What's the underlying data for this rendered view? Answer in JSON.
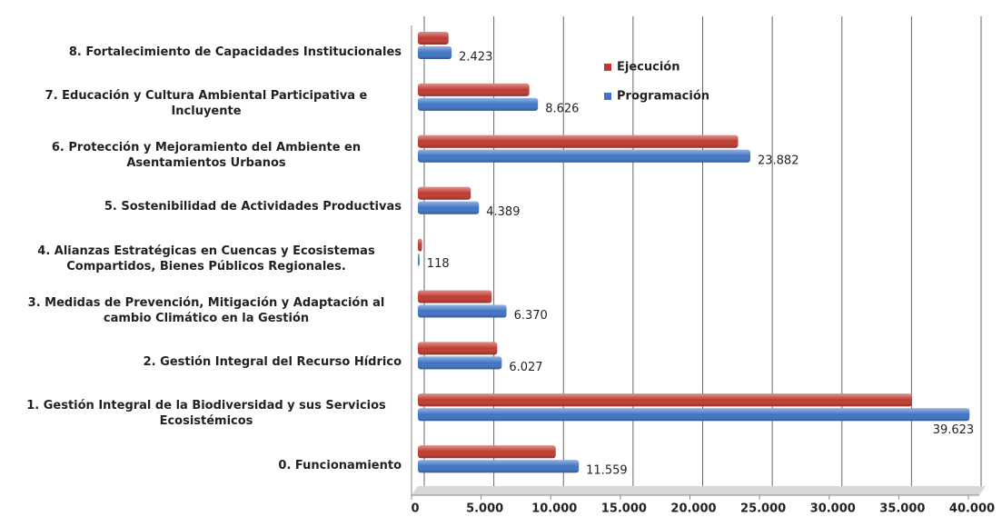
{
  "chart_data": {
    "type": "bar",
    "orientation": "horizontal",
    "categories": [
      "0. Funcionamiento",
      "1. Gestión Integral de la Biodiversidad y sus Servicios Ecosistémicos",
      "2. Gestión Integral del Recurso Hídrico",
      "3. Medidas de Prevención, Mitigación y Adaptación al cambio Climático en la Gestión",
      "4. Alianzas Estratégicas en Cuencas y Ecosistemas Compartidos, Bienes Públicos Regionales.",
      "5.  Sostenibilidad de Actividades Productivas",
      "6. Protección y Mejoramiento del Ambiente en Asentamientos Urbanos",
      "7. Educación y Cultura Ambiental Participativa e Incluyente",
      "8. Fortalecimiento de Capacidades Institucionales"
    ],
    "series": [
      {
        "name": "Ejecución",
        "color": "#c0392f",
        "values": [
          9900,
          35500,
          5700,
          5300,
          300,
          3800,
          23000,
          8000,
          2200
        ]
      },
      {
        "name": "Programación",
        "color": "#3f74c4",
        "values": [
          11559,
          39623,
          6027,
          6370,
          118,
          4389,
          23882,
          8626,
          2423
        ],
        "value_labels": [
          "11.559",
          "39.623",
          "6.027",
          "6.370",
          "118",
          "4.389",
          "23.882",
          "8.626",
          "2.423"
        ]
      }
    ],
    "xlim": [
      0,
      40000
    ],
    "xticks": [
      0,
      {
        "value": 5000,
        "label": "5.000"
      },
      {
        "value": 10000,
        "label": "10.000"
      },
      {
        "value": 15000,
        "label": "15.000"
      },
      {
        "value": 20000,
        "label": "20.000"
      },
      {
        "value": 25000,
        "label": "25.000"
      },
      {
        "value": 30000,
        "label": "30.000"
      },
      {
        "value": 35000,
        "label": "35.000"
      },
      {
        "value": 40000,
        "label": "40.000"
      }
    ],
    "grid": true,
    "legend": "upper-center"
  }
}
